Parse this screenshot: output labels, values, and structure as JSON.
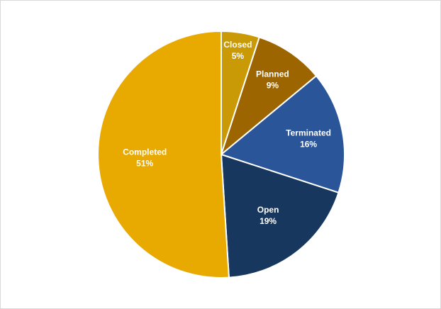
{
  "chart_data": {
    "type": "pie",
    "title": "",
    "start_angle_deg": 0,
    "direction": "clockwise",
    "slices": [
      {
        "label": "Closed",
        "value": 5,
        "value_label": "5%",
        "color": "#c99a06"
      },
      {
        "label": "Planned",
        "value": 9,
        "value_label": "9%",
        "color": "#9c6500"
      },
      {
        "label": "Terminated",
        "value": 16,
        "value_label": "16%",
        "color": "#2a5599"
      },
      {
        "label": "Open",
        "value": 19,
        "value_label": "19%",
        "color": "#17375e"
      },
      {
        "label": "Completed",
        "value": 51,
        "value_label": "51%",
        "color": "#e8a900"
      }
    ],
    "legend": "none",
    "data_labels": "category-and-percent"
  }
}
